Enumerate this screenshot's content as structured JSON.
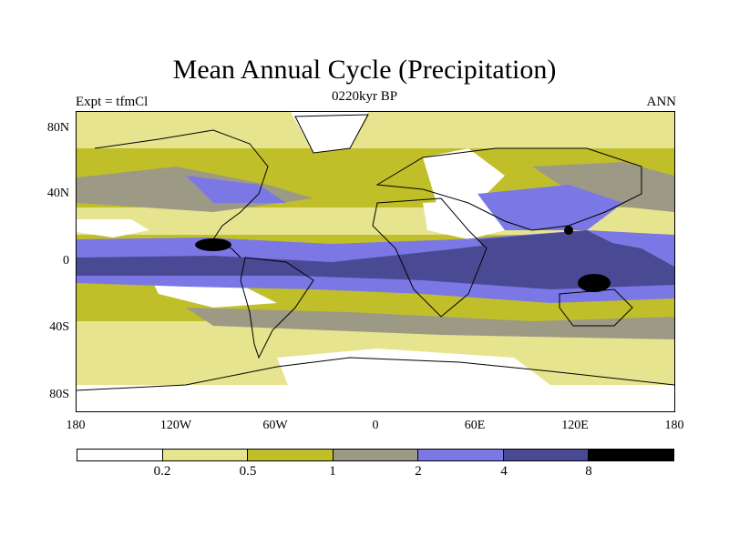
{
  "title": "Mean Annual Cycle (Precipitation)",
  "subtitle": "0220kyr BP",
  "left_label": "Expt = tfmCl",
  "right_label": "ANN",
  "y_ticks": [
    "80N",
    "40N",
    "0",
    "40S",
    "80S"
  ],
  "x_ticks": [
    "180",
    "120W",
    "60W",
    "0",
    "60E",
    "120E",
    "180"
  ],
  "colorbar": {
    "colors": [
      "#ffffff",
      "#e6e48e",
      "#c0bf2a",
      "#9c9a84",
      "#7b78e6",
      "#4a4a94",
      "#000000"
    ],
    "labels": [
      "0.2",
      "0.5",
      "1",
      "2",
      "4",
      "8"
    ]
  },
  "map_colors": {
    "dry": "#ffffff",
    "very_low": "#e6e48e",
    "low": "#c0bf2a",
    "mid": "#9c9a84",
    "high": "#7b78e6",
    "very_high": "#4a4a94",
    "extreme": "#000000"
  }
}
